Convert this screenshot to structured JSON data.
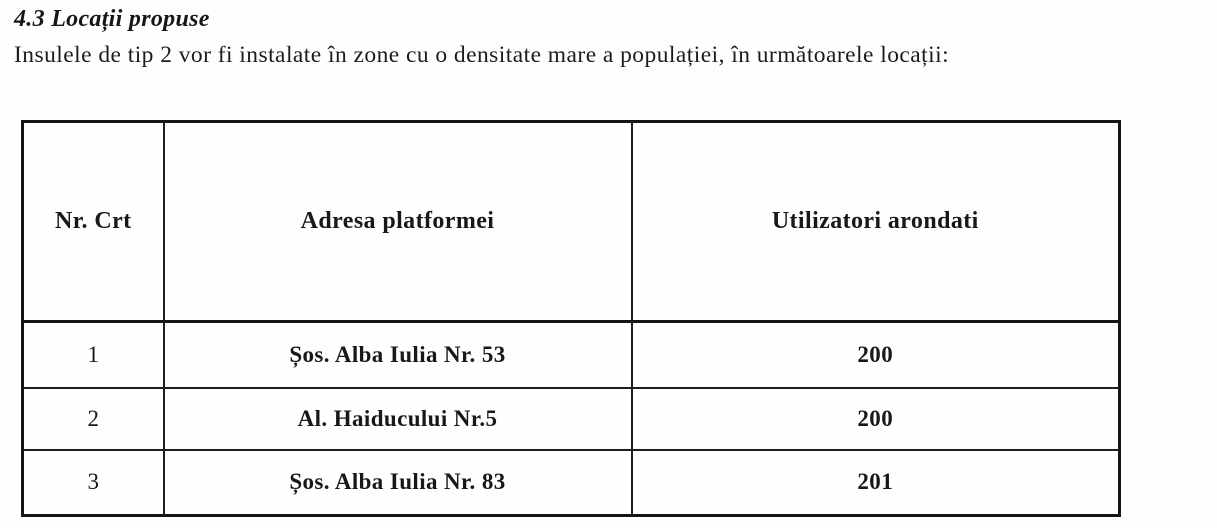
{
  "document": {
    "heading": "4.3 Locații propuse",
    "intro": "Insulele de tip 2 vor fi instalate în zone cu o densitate mare a populației, în următoarele locații:"
  },
  "table": {
    "columns": [
      "Nr. Crt",
      "Adresa platformei",
      "Utilizatori arondati"
    ],
    "rows": [
      [
        "1",
        "Șos. Alba Iulia Nr. 53",
        "200"
      ],
      [
        "2",
        "Al. Haiducului Nr.5",
        "200"
      ],
      [
        "3",
        "Șos. Alba Iulia Nr. 83",
        "201"
      ]
    ]
  },
  "colors": {
    "text": "#1b1b1b",
    "border": "#1e1e1e",
    "background": "#fefefe"
  }
}
